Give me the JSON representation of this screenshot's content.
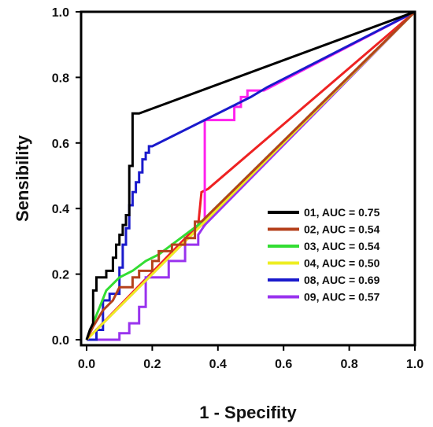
{
  "chart_data": {
    "type": "line",
    "title": "",
    "xlabel": "1 - Specifity",
    "ylabel": "Sensibility",
    "xlim": [
      0.0,
      1.0
    ],
    "ylim": [
      0.0,
      1.0
    ],
    "xticks": [
      "0.0",
      "0.2",
      "0.4",
      "0.6",
      "0.8",
      "1.0"
    ],
    "yticks": [
      "0.0",
      "0.2",
      "0.4",
      "0.6",
      "0.8",
      "1.0"
    ],
    "grid": false,
    "legend_position": "lower-right",
    "series": [
      {
        "name": "01, AUC = 0.75",
        "color": "#000000",
        "points": [
          [
            0,
            0
          ],
          [
            0.01,
            0.03
          ],
          [
            0.02,
            0.05
          ],
          [
            0.02,
            0.15
          ],
          [
            0.03,
            0.15
          ],
          [
            0.03,
            0.19
          ],
          [
            0.06,
            0.19
          ],
          [
            0.06,
            0.21
          ],
          [
            0.08,
            0.21
          ],
          [
            0.08,
            0.25
          ],
          [
            0.09,
            0.25
          ],
          [
            0.09,
            0.29
          ],
          [
            0.1,
            0.29
          ],
          [
            0.1,
            0.32
          ],
          [
            0.11,
            0.32
          ],
          [
            0.11,
            0.35
          ],
          [
            0.12,
            0.35
          ],
          [
            0.12,
            0.38
          ],
          [
            0.13,
            0.38
          ],
          [
            0.13,
            0.53
          ],
          [
            0.14,
            0.53
          ],
          [
            0.14,
            0.69
          ],
          [
            0.16,
            0.69
          ],
          [
            1,
            1
          ]
        ]
      },
      {
        "name": "02, AUC = 0.54",
        "color": "#b5411c",
        "points": [
          [
            0,
            0
          ],
          [
            0.02,
            0.04
          ],
          [
            0.05,
            0.09
          ],
          [
            0.08,
            0.12
          ],
          [
            0.1,
            0.16
          ],
          [
            0.14,
            0.16
          ],
          [
            0.14,
            0.19
          ],
          [
            0.16,
            0.19
          ],
          [
            0.16,
            0.21
          ],
          [
            0.2,
            0.21
          ],
          [
            0.2,
            0.24
          ],
          [
            0.22,
            0.24
          ],
          [
            0.22,
            0.27
          ],
          [
            0.26,
            0.27
          ],
          [
            0.26,
            0.29
          ],
          [
            0.3,
            0.29
          ],
          [
            0.3,
            0.31
          ],
          [
            0.33,
            0.31
          ],
          [
            0.33,
            0.36
          ],
          [
            0.35,
            0.36
          ],
          [
            1,
            1
          ]
        ]
      },
      {
        "name": "03, AUC = 0.54",
        "color": "#33dd33",
        "points": [
          [
            0,
            0
          ],
          [
            0.02,
            0.05
          ],
          [
            0.04,
            0.1
          ],
          [
            0.06,
            0.15
          ],
          [
            0.08,
            0.17
          ],
          [
            0.1,
            0.19
          ],
          [
            0.14,
            0.21
          ],
          [
            0.18,
            0.24
          ],
          [
            0.22,
            0.26
          ],
          [
            0.26,
            0.29
          ],
          [
            0.3,
            0.32
          ],
          [
            0.34,
            0.35
          ],
          [
            0.38,
            0.39
          ],
          [
            1,
            1
          ]
        ]
      },
      {
        "name": "04, AUC = 0.50",
        "color": "#eeee22",
        "points": [
          [
            0,
            0
          ],
          [
            1,
            1
          ]
        ]
      },
      {
        "name": "08, AUC = 0.69",
        "color": "#1a1acc",
        "points": [
          [
            0,
            0
          ],
          [
            0.03,
            0
          ],
          [
            0.03,
            0.03
          ],
          [
            0.05,
            0.03
          ],
          [
            0.05,
            0.12
          ],
          [
            0.07,
            0.12
          ],
          [
            0.07,
            0.14
          ],
          [
            0.1,
            0.14
          ],
          [
            0.1,
            0.22
          ],
          [
            0.11,
            0.22
          ],
          [
            0.11,
            0.29
          ],
          [
            0.12,
            0.29
          ],
          [
            0.12,
            0.34
          ],
          [
            0.13,
            0.34
          ],
          [
            0.13,
            0.41
          ],
          [
            0.14,
            0.41
          ],
          [
            0.14,
            0.45
          ],
          [
            0.15,
            0.45
          ],
          [
            0.15,
            0.48
          ],
          [
            0.16,
            0.48
          ],
          [
            0.16,
            0.51
          ],
          [
            0.17,
            0.51
          ],
          [
            0.17,
            0.55
          ],
          [
            0.18,
            0.55
          ],
          [
            0.18,
            0.57
          ],
          [
            0.19,
            0.57
          ],
          [
            0.19,
            0.59
          ],
          [
            0.2,
            0.59
          ],
          [
            0.36,
            0.67
          ],
          [
            0.5,
            0.74
          ],
          [
            0.55,
            0.77
          ],
          [
            1,
            1
          ]
        ]
      },
      {
        "name": "09, AUC = 0.57",
        "color": "#9933ee",
        "points": [
          [
            0,
            0
          ],
          [
            0.1,
            0
          ],
          [
            0.1,
            0.02
          ],
          [
            0.13,
            0.02
          ],
          [
            0.13,
            0.05
          ],
          [
            0.16,
            0.05
          ],
          [
            0.16,
            0.1
          ],
          [
            0.18,
            0.1
          ],
          [
            0.18,
            0.19
          ],
          [
            0.25,
            0.19
          ],
          [
            0.25,
            0.24
          ],
          [
            0.3,
            0.24
          ],
          [
            0.3,
            0.29
          ],
          [
            0.34,
            0.29
          ],
          [
            0.34,
            0.32
          ],
          [
            0.36,
            0.35
          ],
          [
            1,
            1
          ]
        ]
      },
      {
        "name": "",
        "color": "#ff22ee",
        "points": [
          [
            0,
            0
          ],
          [
            0.35,
            0.35
          ],
          [
            0.36,
            0.35
          ],
          [
            0.36,
            0.67
          ],
          [
            0.45,
            0.67
          ],
          [
            0.45,
            0.71
          ],
          [
            0.47,
            0.71
          ],
          [
            0.47,
            0.74
          ],
          [
            0.49,
            0.74
          ],
          [
            0.49,
            0.76
          ],
          [
            0.54,
            0.76
          ],
          [
            1,
            1
          ]
        ]
      },
      {
        "name": "",
        "color": "#ee2222",
        "points": [
          [
            0,
            0
          ],
          [
            0.34,
            0.35
          ],
          [
            0.35,
            0.45
          ],
          [
            0.37,
            0.46
          ],
          [
            1,
            1
          ]
        ]
      }
    ]
  }
}
